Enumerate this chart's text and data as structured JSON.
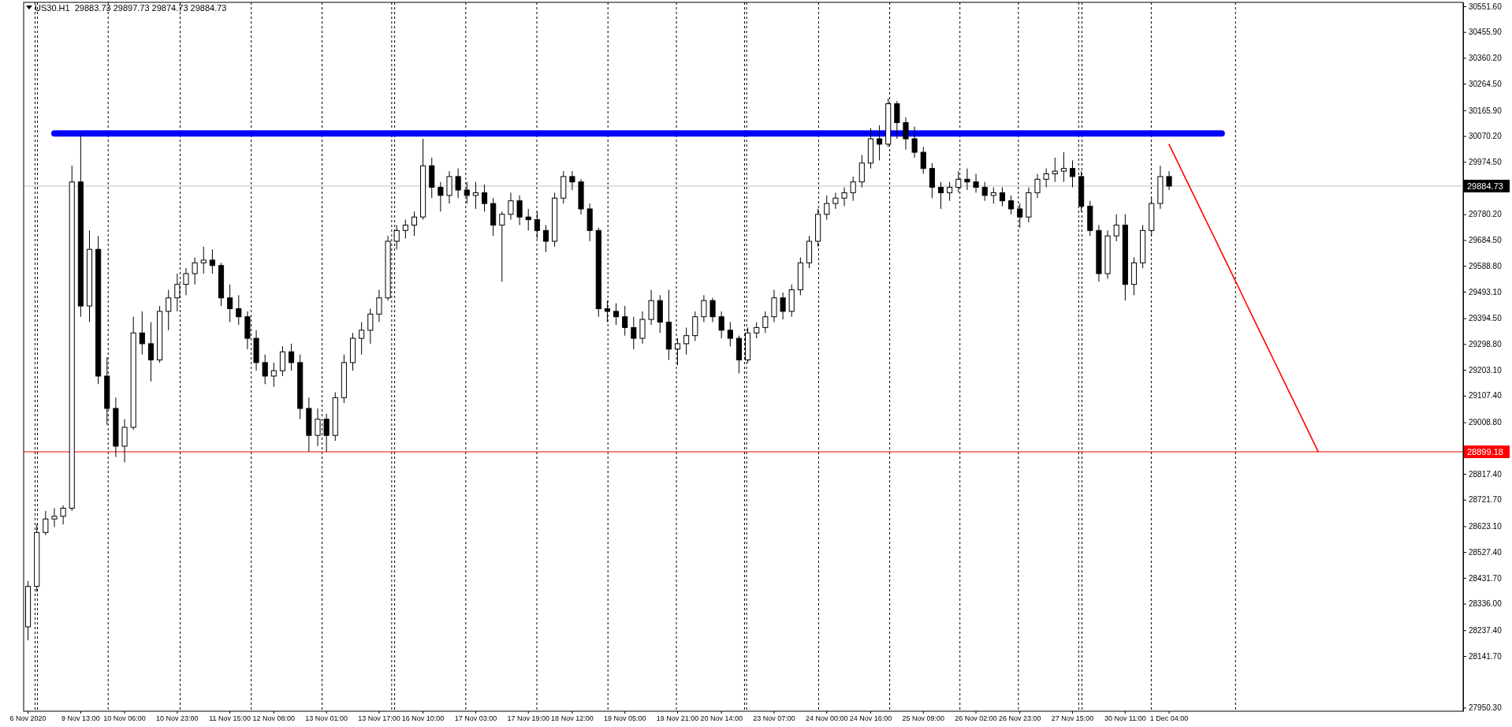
{
  "chart_data": {
    "type": "candlestick",
    "title": "US30.H1  29883.73 29897.73 29874.73 29884.73",
    "categories": [
      "6 Nov 2020",
      null,
      null,
      null,
      null,
      null,
      "9 Nov 13:00",
      null,
      null,
      null,
      null,
      "10 Nov 06:00",
      null,
      null,
      null,
      null,
      null,
      "10 Nov 23:00",
      null,
      null,
      null,
      null,
      null,
      "11 Nov 15:00",
      null,
      null,
      null,
      null,
      "12 Nov 08:00",
      null,
      null,
      null,
      null,
      null,
      "13 Nov 01:00",
      null,
      null,
      null,
      null,
      null,
      "13 Nov 17:00",
      null,
      null,
      null,
      null,
      "16 Nov 10:00",
      null,
      null,
      null,
      null,
      null,
      "17 Nov 03:00",
      null,
      null,
      null,
      null,
      null,
      "17 Nov 19:00",
      null,
      null,
      null,
      null,
      "18 Nov 12:00",
      null,
      null,
      null,
      null,
      null,
      "19 Nov 05:00",
      null,
      null,
      null,
      null,
      null,
      "19 Nov 21:00",
      null,
      null,
      null,
      null,
      "20 Nov 14:00",
      null,
      null,
      null,
      null,
      null,
      "23 Nov 07:00",
      null,
      null,
      null,
      null,
      null,
      "24 Nov 00:00",
      null,
      null,
      null,
      null,
      "24 Nov 16:00",
      null,
      null,
      null,
      null,
      null,
      "25 Nov 09:00",
      null,
      null,
      null,
      null,
      null,
      "26 Nov 02:00",
      null,
      null,
      null,
      null,
      "26 Nov 23:00",
      null,
      null,
      null,
      null,
      null,
      "27 Nov 15:00",
      null,
      null,
      null,
      null,
      null,
      "30 Nov 11:00",
      null,
      null,
      null,
      null,
      "1 Dec 04:00",
      null,
      null,
      null,
      null,
      null,
      null,
      null,
      null,
      null,
      null,
      null,
      null,
      null,
      null,
      null,
      null,
      null,
      null,
      null,
      null,
      null,
      null,
      null,
      null,
      null,
      null,
      null,
      null,
      null,
      null,
      null,
      null,
      null
    ],
    "ylim": [
      27937,
      30566
    ],
    "yticks": [
      {
        "value": 30551.6,
        "label": "30551.60"
      },
      {
        "value": 30455.9,
        "label": "30455.90"
      },
      {
        "value": 30360.2,
        "label": "30360.20"
      },
      {
        "value": 30264.5,
        "label": "30264.50"
      },
      {
        "value": 30165.9,
        "label": "30165.90"
      },
      {
        "value": 30070.2,
        "label": "30070.20"
      },
      {
        "value": 29974.5,
        "label": "29974.50"
      },
      {
        "value": 29780.2,
        "label": "29780.20"
      },
      {
        "value": 29684.5,
        "label": "29684.50"
      },
      {
        "value": 29588.8,
        "label": "29588.80"
      },
      {
        "value": 29493.1,
        "label": "29493.10"
      },
      {
        "value": 29394.5,
        "label": "29394.50"
      },
      {
        "value": 29298.8,
        "label": "29298.80"
      },
      {
        "value": 29203.1,
        "label": "29203.10"
      },
      {
        "value": 29107.4,
        "label": "29107.40"
      },
      {
        "value": 29008.8,
        "label": "29008.80"
      },
      {
        "value": 28817.4,
        "label": "28817.40"
      },
      {
        "value": 28721.7,
        "label": "28721.70"
      },
      {
        "value": 28623.1,
        "label": "28623.10"
      },
      {
        "value": 28527.4,
        "label": "28527.40"
      },
      {
        "value": 28431.7,
        "label": "28431.70"
      },
      {
        "value": 28336,
        "label": "28336.00"
      },
      {
        "value": 28237.4,
        "label": "28237.40"
      },
      {
        "value": 28141.7,
        "label": "28141.70"
      },
      {
        "value": 27950.3,
        "label": "27950.30"
      }
    ],
    "ref_lines": [
      {
        "axis": "y",
        "value": 29884.73,
        "label": "29884.73",
        "color": "#c0c0c0",
        "line_style": "solid"
      },
      {
        "axis": "y",
        "value": 28899.18,
        "label": "28899.18",
        "color": "#ff0000",
        "line_style": "solid"
      }
    ],
    "series": [
      {
        "color": "#000000",
        "ohlc": [
          [
            28250,
            28420,
            28200,
            28400
          ],
          [
            28400,
            28630,
            28380,
            28600
          ],
          [
            28600,
            28680,
            28590,
            28650
          ],
          [
            28650,
            28690,
            28620,
            28660
          ],
          [
            28660,
            28700,
            28630,
            28690
          ],
          [
            28690,
            29960,
            28680,
            29900
          ],
          [
            29900,
            30075,
            29400,
            29440
          ],
          [
            29440,
            29720,
            29380,
            29650
          ],
          [
            29650,
            29700,
            29150,
            29180
          ],
          [
            29180,
            29250,
            29000,
            29060
          ],
          [
            29060,
            29100,
            28880,
            28920
          ],
          [
            28920,
            29020,
            28860,
            28990
          ],
          [
            28990,
            29400,
            28980,
            29340
          ],
          [
            29340,
            29420,
            29260,
            29300
          ],
          [
            29300,
            29380,
            29160,
            29240
          ],
          [
            29240,
            29440,
            29230,
            29420
          ],
          [
            29420,
            29500,
            29350,
            29470
          ],
          [
            29470,
            29560,
            29420,
            29520
          ],
          [
            29520,
            29580,
            29480,
            29560
          ],
          [
            29560,
            29620,
            29520,
            29600
          ],
          [
            29600,
            29660,
            29560,
            29610
          ],
          [
            29610,
            29650,
            29560,
            29590
          ],
          [
            29590,
            29600,
            29440,
            29470
          ],
          [
            29470,
            29520,
            29380,
            29430
          ],
          [
            29430,
            29480,
            29370,
            29400
          ],
          [
            29400,
            29420,
            29280,
            29320
          ],
          [
            29320,
            29350,
            29200,
            29230
          ],
          [
            29230,
            29260,
            29150,
            29180
          ],
          [
            29180,
            29230,
            29140,
            29200
          ],
          [
            29200,
            29290,
            29180,
            29270
          ],
          [
            29270,
            29300,
            29200,
            29230
          ],
          [
            29230,
            29260,
            29020,
            29060
          ],
          [
            29060,
            29100,
            28900,
            28960
          ],
          [
            28960,
            29060,
            28920,
            29020
          ],
          [
            29020,
            29040,
            28900,
            28960
          ],
          [
            28960,
            29120,
            28940,
            29100
          ],
          [
            29100,
            29260,
            29080,
            29230
          ],
          [
            29230,
            29340,
            29200,
            29320
          ],
          [
            29320,
            29380,
            29260,
            29350
          ],
          [
            29350,
            29430,
            29300,
            29410
          ],
          [
            29410,
            29500,
            29380,
            29470
          ],
          [
            29470,
            29700,
            29460,
            29680
          ],
          [
            29680,
            29740,
            29650,
            29720
          ],
          [
            29720,
            29760,
            29690,
            29740
          ],
          [
            29740,
            29790,
            29700,
            29770
          ],
          [
            29770,
            30060,
            29760,
            29960
          ],
          [
            29960,
            29990,
            29840,
            29880
          ],
          [
            29880,
            29900,
            29790,
            29850
          ],
          [
            29850,
            29940,
            29820,
            29920
          ],
          [
            29920,
            29950,
            29840,
            29870
          ],
          [
            29870,
            29900,
            29820,
            29850
          ],
          [
            29850,
            29900,
            29800,
            29860
          ],
          [
            29860,
            29890,
            29790,
            29820
          ],
          [
            29820,
            29840,
            29700,
            29740
          ],
          [
            29740,
            29790,
            29530,
            29780
          ],
          [
            29780,
            29860,
            29760,
            29830
          ],
          [
            29830,
            29850,
            29740,
            29770
          ],
          [
            29770,
            29800,
            29720,
            29760
          ],
          [
            29760,
            29790,
            29690,
            29720
          ],
          [
            29720,
            29740,
            29640,
            29680
          ],
          [
            29680,
            29860,
            29660,
            29840
          ],
          [
            29840,
            29940,
            29820,
            29920
          ],
          [
            29920,
            29940,
            29870,
            29900
          ],
          [
            29900,
            29910,
            29780,
            29800
          ],
          [
            29800,
            29820,
            29680,
            29720
          ],
          [
            29720,
            29730,
            29400,
            29430
          ],
          [
            29430,
            29460,
            29380,
            29420
          ],
          [
            29420,
            29450,
            29370,
            29400
          ],
          [
            29400,
            29440,
            29330,
            29360
          ],
          [
            29360,
            29400,
            29280,
            29320
          ],
          [
            29320,
            29420,
            29300,
            29390
          ],
          [
            29390,
            29500,
            29370,
            29460
          ],
          [
            29460,
            29480,
            29340,
            29380
          ],
          [
            29380,
            29500,
            29240,
            29280
          ],
          [
            29280,
            29320,
            29220,
            29300
          ],
          [
            29300,
            29360,
            29260,
            29330
          ],
          [
            29330,
            29420,
            29310,
            29400
          ],
          [
            29400,
            29480,
            29380,
            29460
          ],
          [
            29460,
            29470,
            29380,
            29400
          ],
          [
            29400,
            29420,
            29320,
            29350
          ],
          [
            29350,
            29380,
            29290,
            29320
          ],
          [
            29320,
            29330,
            29190,
            29240
          ],
          [
            29240,
            29360,
            29230,
            29340
          ],
          [
            29340,
            29380,
            29320,
            29360
          ],
          [
            29360,
            29420,
            29340,
            29400
          ],
          [
            29400,
            29500,
            29380,
            29470
          ],
          [
            29470,
            29490,
            29390,
            29420
          ],
          [
            29420,
            29520,
            29400,
            29500
          ],
          [
            29500,
            29620,
            29480,
            29600
          ],
          [
            29600,
            29700,
            29580,
            29680
          ],
          [
            29680,
            29800,
            29660,
            29780
          ],
          [
            29780,
            29850,
            29760,
            29820
          ],
          [
            29820,
            29860,
            29800,
            29840
          ],
          [
            29840,
            29880,
            29810,
            29860
          ],
          [
            29860,
            29920,
            29830,
            29900
          ],
          [
            29900,
            30000,
            29880,
            29970
          ],
          [
            29970,
            30100,
            29950,
            30060
          ],
          [
            30060,
            30110,
            29980,
            30040
          ],
          [
            30040,
            30210,
            30030,
            30190
          ],
          [
            30190,
            30200,
            30060,
            30120
          ],
          [
            30120,
            30140,
            30020,
            30060
          ],
          [
            30060,
            30105,
            29990,
            30010
          ],
          [
            30010,
            30030,
            29930,
            29950
          ],
          [
            29950,
            29970,
            29840,
            29880
          ],
          [
            29880,
            29900,
            29800,
            29860
          ],
          [
            29860,
            29900,
            29830,
            29880
          ],
          [
            29880,
            29940,
            29860,
            29910
          ],
          [
            29910,
            29950,
            29870,
            29900
          ],
          [
            29900,
            29930,
            29860,
            29880
          ],
          [
            29880,
            29900,
            29830,
            29850
          ],
          [
            29850,
            29880,
            29820,
            29860
          ],
          [
            29860,
            29880,
            29810,
            29830
          ],
          [
            29830,
            29850,
            29780,
            29800
          ],
          [
            29800,
            29820,
            29730,
            29770
          ],
          [
            29770,
            29880,
            29750,
            29860
          ],
          [
            29860,
            29930,
            29840,
            29910
          ],
          [
            29910,
            29950,
            29880,
            29930
          ],
          [
            29930,
            29990,
            29900,
            29940
          ],
          [
            29940,
            30010,
            29900,
            29950
          ],
          [
            29950,
            29980,
            29880,
            29920
          ],
          [
            29920,
            29940,
            29790,
            29810
          ],
          [
            29810,
            29830,
            29700,
            29720
          ],
          [
            29720,
            29740,
            29530,
            29560
          ],
          [
            29560,
            29720,
            29540,
            29700
          ],
          [
            29700,
            29780,
            29680,
            29740
          ],
          [
            29740,
            29780,
            29460,
            29520
          ],
          [
            29520,
            29620,
            29480,
            29600
          ],
          [
            29600,
            29740,
            29580,
            29720
          ],
          [
            29720,
            29840,
            29700,
            29820
          ],
          [
            29820,
            29960,
            29800,
            29920
          ],
          [
            29920,
            29940,
            29870,
            29884.73
          ],
          null,
          null,
          null,
          null,
          null,
          null,
          null,
          null,
          null,
          null,
          null,
          null,
          null,
          null,
          null,
          null,
          null,
          null,
          null,
          null,
          null,
          null,
          null,
          null,
          null,
          null,
          null,
          null,
          null,
          null,
          null,
          null,
          null
        ]
      },
      {
        "type": "line",
        "color": "#0000ff",
        "values": [
          null,
          null,
          null,
          30080,
          30080,
          30080,
          30080,
          30080,
          30080,
          30080,
          30080,
          30080,
          30080,
          30080,
          30080,
          30080,
          30080,
          30080,
          30080,
          30080,
          30080,
          30080,
          30080,
          30080,
          30080,
          30080,
          30080,
          30080,
          30080,
          30080,
          30080,
          30080,
          30080,
          30080,
          30080,
          30080,
          30080,
          30080,
          30080,
          30080,
          30080,
          30080,
          30080,
          30080,
          30080,
          30080,
          30080,
          30080,
          30080,
          30080,
          30080,
          30080,
          30080,
          30080,
          30080,
          30080,
          30080,
          30080,
          30080,
          30080,
          30080,
          30080,
          30080,
          30080,
          30080,
          30080,
          30080,
          30080,
          30080,
          30080,
          30080,
          30080,
          30080,
          30080,
          30080,
          30080,
          30080,
          30080,
          30080,
          30080,
          30080,
          30080,
          30080,
          30080,
          30080,
          30080,
          30080,
          30080,
          30080,
          30080,
          30080,
          30080,
          30080,
          30080,
          30080,
          30080,
          30080,
          30080,
          30080,
          30080,
          30080,
          30080,
          30080,
          30080,
          30080,
          30080,
          30080,
          30080,
          30080,
          30080,
          30080,
          30080,
          30080,
          30080,
          30080,
          30080,
          30080,
          30080,
          30080,
          30080,
          30080,
          30080,
          30080,
          30080,
          30080,
          30080,
          30080,
          30080,
          30080,
          30080,
          30080,
          30080,
          30080,
          30080,
          30080,
          30080,
          30080,
          null,
          null,
          null,
          null,
          null,
          null,
          null,
          null,
          null,
          null,
          null,
          null,
          null,
          null,
          null,
          null,
          null,
          null,
          null,
          null,
          null,
          null,
          null,
          null,
          null,
          null,
          null
        ]
      },
      {
        "type": "line",
        "color": "#ff0000",
        "values": [
          null,
          null,
          null,
          null,
          null,
          null,
          null,
          null,
          null,
          null,
          null,
          null,
          null,
          null,
          null,
          null,
          null,
          null,
          null,
          null,
          null,
          null,
          null,
          null,
          null,
          null,
          null,
          null,
          null,
          null,
          null,
          null,
          null,
          null,
          null,
          null,
          null,
          null,
          null,
          null,
          null,
          null,
          null,
          null,
          null,
          null,
          null,
          null,
          null,
          null,
          null,
          null,
          null,
          null,
          null,
          null,
          null,
          null,
          null,
          null,
          null,
          null,
          null,
          null,
          null,
          null,
          null,
          null,
          null,
          null,
          null,
          null,
          null,
          null,
          null,
          null,
          null,
          null,
          null,
          null,
          null,
          null,
          null,
          null,
          null,
          null,
          null,
          null,
          null,
          null,
          null,
          null,
          null,
          null,
          null,
          null,
          null,
          null,
          null,
          null,
          null,
          null,
          null,
          null,
          null,
          null,
          null,
          null,
          null,
          null,
          null,
          null,
          null,
          null,
          null,
          null,
          null,
          null,
          null,
          null,
          null,
          null,
          null,
          null,
          null,
          null,
          null,
          null,
          null,
          null,
          30039,
          29972,
          29905,
          29838,
          29771,
          29704,
          29637,
          29570,
          29503,
          29435,
          29368,
          29301,
          29234,
          29167,
          29100,
          29033,
          28966,
          28899,
          null,
          null,
          null,
          null,
          null,
          null,
          null,
          null,
          null,
          null,
          null,
          null,
          null,
          null,
          null,
          null
        ]
      }
    ]
  }
}
